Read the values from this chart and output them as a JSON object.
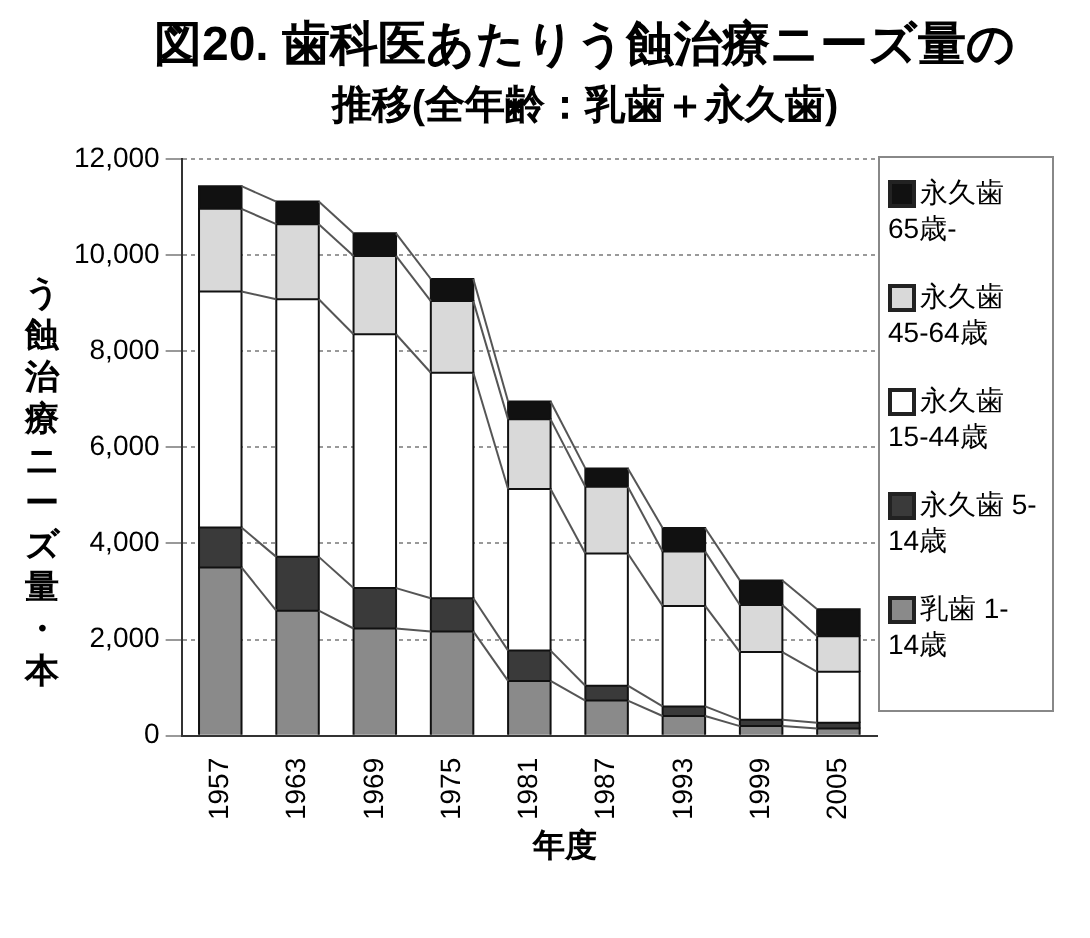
{
  "chart_data": {
    "type": "bar",
    "title": "図20. 歯科医あたりう蝕治療ニーズ量の",
    "subtitle": "推移(全年齢：乳歯＋永久歯)",
    "xlabel": "年度",
    "ylabel": "う蝕治療ニーズ量・本",
    "categories": [
      "1957",
      "1963",
      "1969",
      "1975",
      "1981",
      "1987",
      "1993",
      "1999",
      "2005"
    ],
    "stacked": true,
    "legend": "right",
    "grid": "y",
    "ylim": [
      0,
      12000
    ],
    "yticks": [
      {
        "value": 0,
        "label": "0"
      },
      {
        "value": 2000,
        "label": "2,000"
      },
      {
        "value": 4000,
        "label": "4,000"
      },
      {
        "value": 6000,
        "label": "6,000"
      },
      {
        "value": 8000,
        "label": "8,000"
      },
      {
        "value": 10000,
        "label": "10,000"
      },
      {
        "value": 12000,
        "label": "12,000"
      }
    ],
    "series": [
      {
        "name": "乳歯 1-14歳",
        "color": "#8a8a8a",
        "values": [
          3500,
          2600,
          2230,
          2170,
          1140,
          730,
          410,
          200,
          150
        ]
      },
      {
        "name": "永久歯 5-14歳",
        "color": "#3a3a3a",
        "values": [
          830,
          1120,
          840,
          690,
          630,
          310,
          200,
          130,
          120
        ]
      },
      {
        "name": "永久歯 15-44歳",
        "color": "#ffffff",
        "values": [
          4910,
          5360,
          5280,
          4690,
          3360,
          2750,
          2090,
          1410,
          1060
        ]
      },
      {
        "name": "永久歯 45-64歳",
        "color": "#d9d9d9",
        "values": [
          1720,
          1560,
          1630,
          1490,
          1450,
          1390,
          1130,
          980,
          740
        ]
      },
      {
        "name": "永久歯 65歳-",
        "color": "#111111",
        "values": [
          470,
          470,
          470,
          460,
          370,
          380,
          490,
          510,
          560
        ]
      }
    ]
  }
}
